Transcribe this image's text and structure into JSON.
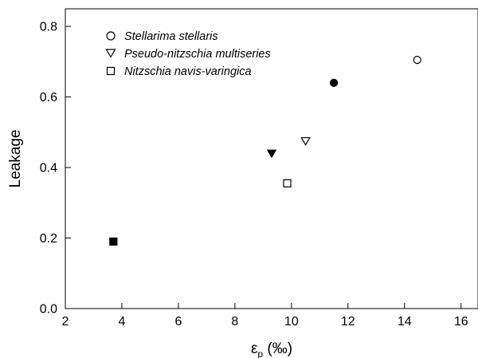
{
  "chart_data": {
    "type": "scatter",
    "title": "",
    "xlabel": "ε",
    "xlabel_sub": "p",
    "xlabel_unit": " (‰)",
    "ylabel": "Leakage",
    "xlim": [
      2,
      16.6
    ],
    "ylim": [
      0,
      0.85
    ],
    "xticks": [
      2,
      4,
      6,
      8,
      10,
      12,
      14,
      16
    ],
    "yticks": [
      0.0,
      0.2,
      0.4,
      0.6,
      0.8
    ],
    "ytick_labels": [
      "0.0",
      "0.2",
      "0.4",
      "0.6",
      "0.8"
    ],
    "grid": false,
    "legend_position": "top-left",
    "series": [
      {
        "name": "Stellarima stellaris",
        "marker": "circle",
        "points": [
          {
            "x": 14.45,
            "y": 0.705,
            "filled": false
          },
          {
            "x": 11.5,
            "y": 0.64,
            "filled": true
          }
        ]
      },
      {
        "name": "Pseudo-nitzschia multiseries",
        "marker": "triangle-down",
        "points": [
          {
            "x": 10.5,
            "y": 0.475,
            "filled": false
          },
          {
            "x": 9.3,
            "y": 0.44,
            "filled": true
          }
        ]
      },
      {
        "name": "Nitzschia navis-varingica",
        "marker": "square",
        "points": [
          {
            "x": 9.85,
            "y": 0.355,
            "filled": false
          },
          {
            "x": 3.7,
            "y": 0.19,
            "filled": true
          }
        ]
      }
    ]
  }
}
